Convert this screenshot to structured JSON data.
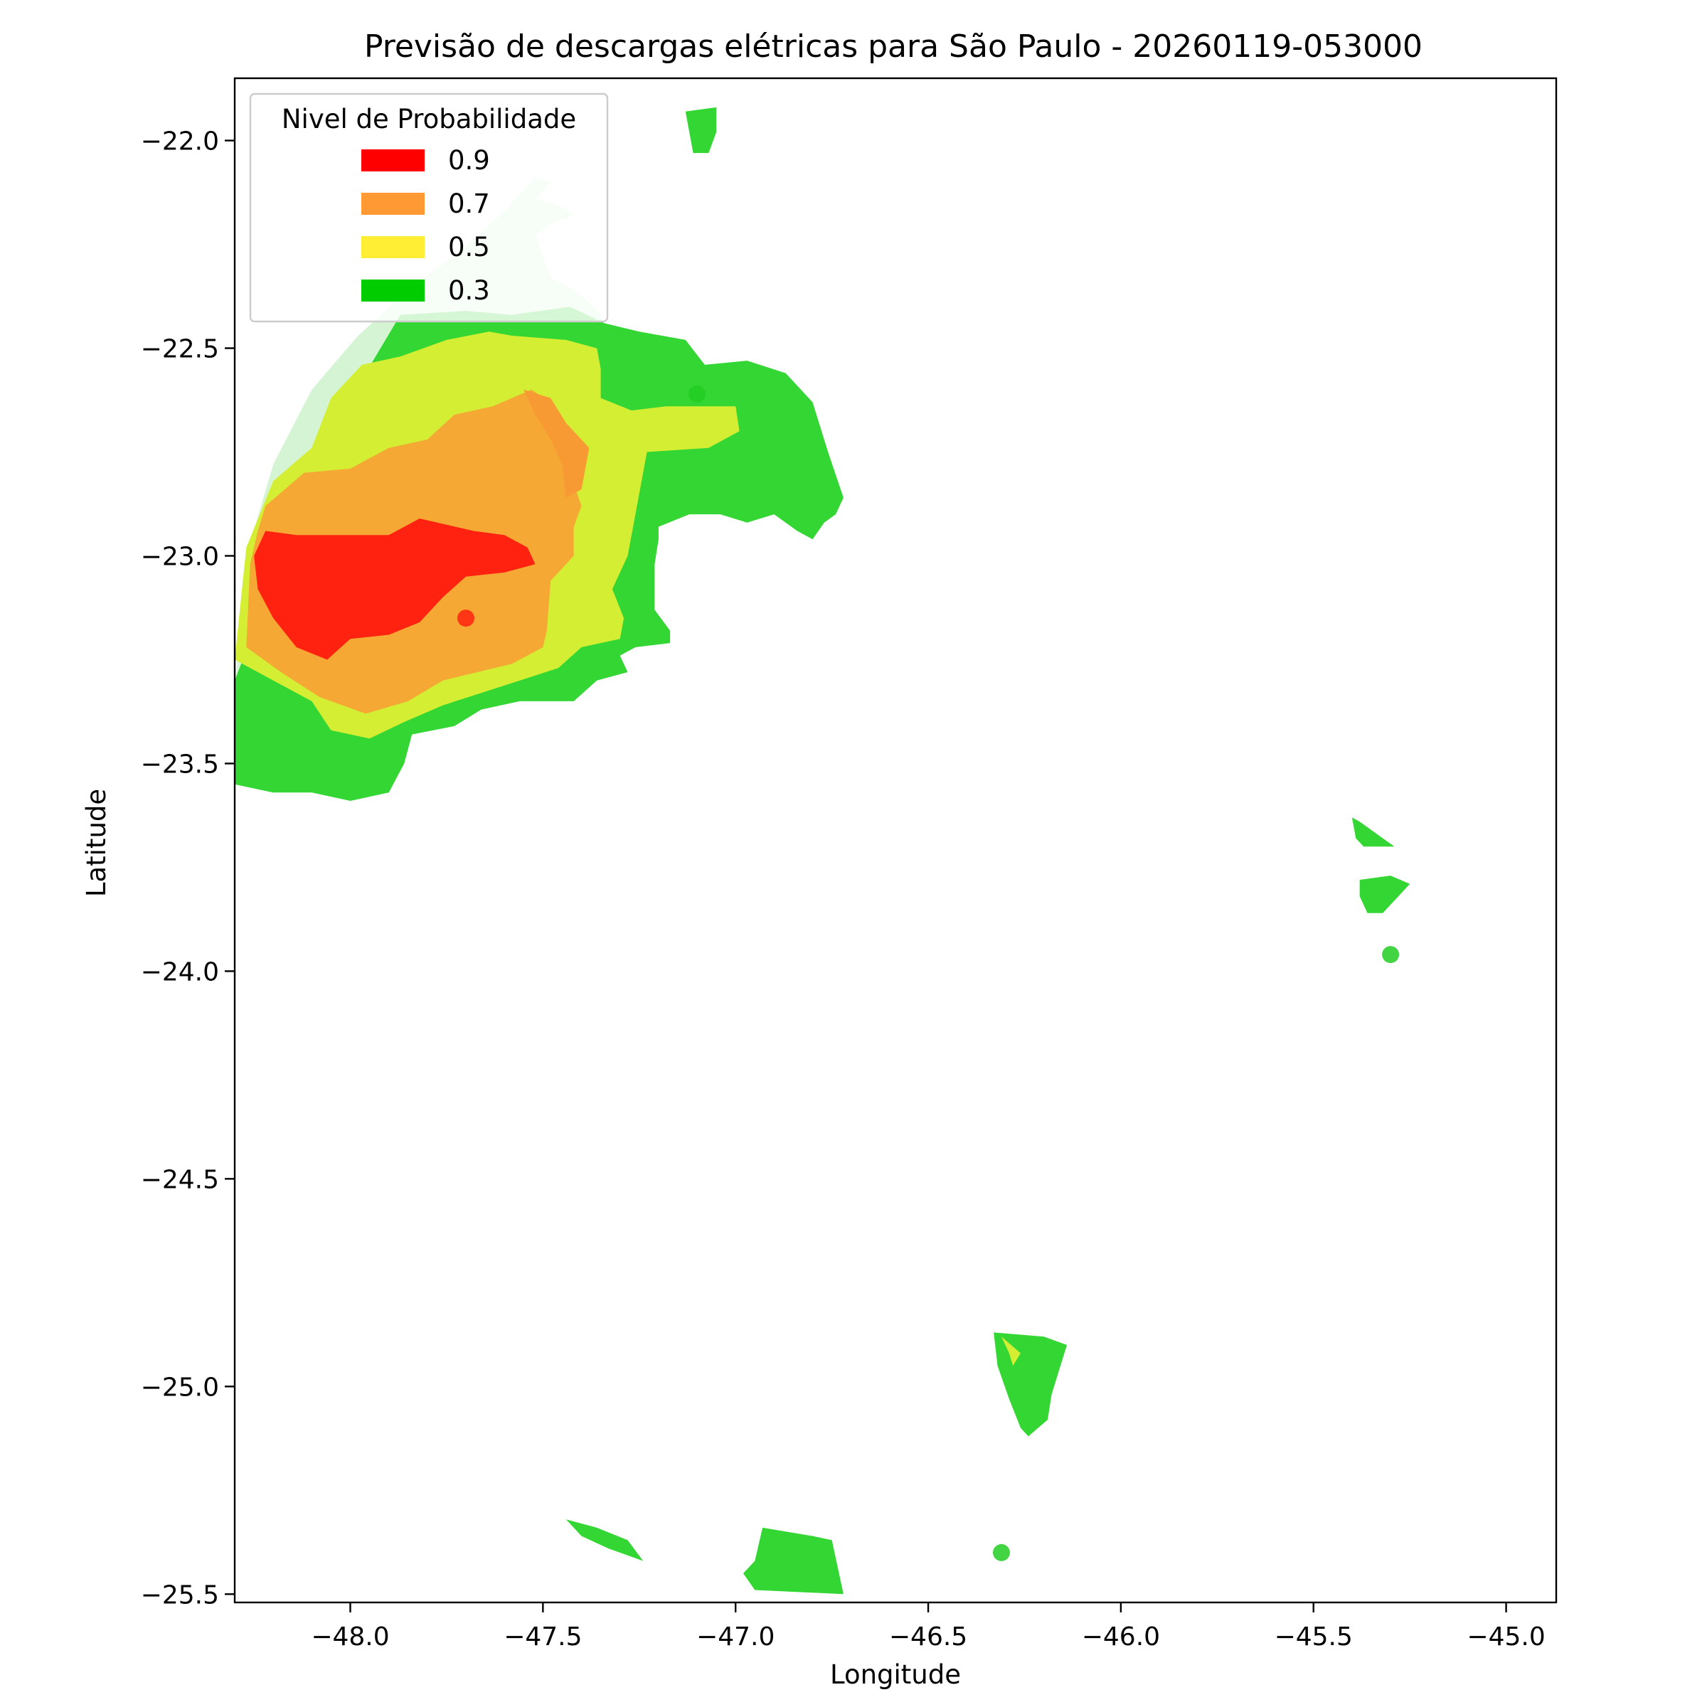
{
  "chart_data": {
    "type": "contour-map",
    "title": "Previsão de descargas elétricas para São Paulo - 20260119-053000",
    "xlabel": "Longitude",
    "ylabel": "Latitude",
    "xlim": [
      -48.3,
      -44.87
    ],
    "ylim": [
      -25.52,
      -21.85
    ],
    "x_ticks": [
      -48.0,
      -47.5,
      -47.0,
      -46.5,
      -46.0,
      -45.5,
      -45.0
    ],
    "y_ticks": [
      -22.0,
      -22.5,
      -23.0,
      -23.5,
      -24.0,
      -24.5,
      -25.0,
      -25.5
    ],
    "x_tick_labels": [
      "−48.0",
      "−47.5",
      "−47.0",
      "−46.5",
      "−46.0",
      "−45.5",
      "−45.0"
    ],
    "y_tick_labels": [
      "−22.0",
      "−22.5",
      "−23.0",
      "−23.5",
      "−24.0",
      "−24.5",
      "−25.0",
      "−25.5"
    ],
    "grid": false,
    "legend": {
      "title": "Nivel de Probabilidade",
      "placement": "top-left",
      "entries": [
        {
          "label": "0.9",
          "color": "#ff0000"
        },
        {
          "label": "0.7",
          "color": "#ff9933"
        },
        {
          "label": "0.5",
          "color": "#ffee33"
        },
        {
          "label": "0.3",
          "color": "#00cc00"
        }
      ]
    },
    "fill_colors": {
      "0.1": "#d4f4d4",
      "0.3": "#33d633",
      "0.5": "#d4ee33",
      "0.7": "#f5a833",
      "0.8": "#f89a33",
      "0.9": "#ff2211"
    },
    "regions": [
      {
        "level": "0.1",
        "points": [
          [
            -48.3,
            -23.32
          ],
          [
            -48.27,
            -23.0
          ],
          [
            -48.2,
            -22.78
          ],
          [
            -48.1,
            -22.6
          ],
          [
            -47.98,
            -22.47
          ],
          [
            -47.85,
            -22.36
          ],
          [
            -47.72,
            -22.27
          ],
          [
            -47.6,
            -22.17
          ],
          [
            -47.52,
            -22.09
          ],
          [
            -47.48,
            -22.1
          ],
          [
            -47.52,
            -22.14
          ],
          [
            -47.45,
            -22.16
          ],
          [
            -47.42,
            -22.18
          ],
          [
            -47.48,
            -22.2
          ],
          [
            -47.52,
            -22.23
          ],
          [
            -47.5,
            -22.28
          ],
          [
            -47.48,
            -22.33
          ],
          [
            -47.42,
            -22.36
          ],
          [
            -47.38,
            -22.39
          ],
          [
            -47.35,
            -22.42
          ],
          [
            -47.33,
            -22.48
          ],
          [
            -47.6,
            -22.6
          ],
          [
            -48.3,
            -23.3
          ]
        ]
      },
      {
        "level": "0.3",
        "points": [
          [
            -47.87,
            -22.42
          ],
          [
            -47.7,
            -22.41
          ],
          [
            -47.58,
            -22.42
          ],
          [
            -47.43,
            -22.4
          ],
          [
            -47.34,
            -22.44
          ],
          [
            -47.25,
            -22.46
          ],
          [
            -47.13,
            -22.48
          ],
          [
            -47.08,
            -22.54
          ],
          [
            -46.97,
            -22.53
          ],
          [
            -46.87,
            -22.56
          ],
          [
            -46.8,
            -22.63
          ],
          [
            -46.76,
            -22.75
          ],
          [
            -46.72,
            -22.86
          ],
          [
            -46.74,
            -22.9
          ],
          [
            -46.77,
            -22.92
          ],
          [
            -46.8,
            -22.96
          ],
          [
            -46.84,
            -22.94
          ],
          [
            -46.9,
            -22.9
          ],
          [
            -46.97,
            -22.92
          ],
          [
            -47.04,
            -22.9
          ],
          [
            -47.12,
            -22.9
          ],
          [
            -47.2,
            -22.93
          ],
          [
            -47.2,
            -22.96
          ],
          [
            -47.21,
            -23.02
          ],
          [
            -47.21,
            -23.13
          ],
          [
            -47.17,
            -23.18
          ],
          [
            -47.17,
            -23.21
          ],
          [
            -47.26,
            -23.22
          ],
          [
            -47.3,
            -23.24
          ],
          [
            -47.28,
            -23.28
          ],
          [
            -47.36,
            -23.3
          ],
          [
            -47.42,
            -23.35
          ],
          [
            -47.56,
            -23.35
          ],
          [
            -47.66,
            -23.37
          ],
          [
            -47.73,
            -23.41
          ],
          [
            -47.84,
            -23.43
          ],
          [
            -47.86,
            -23.5
          ],
          [
            -47.9,
            -23.57
          ],
          [
            -48.0,
            -23.59
          ],
          [
            -48.1,
            -23.57
          ],
          [
            -48.2,
            -23.57
          ],
          [
            -48.3,
            -23.55
          ],
          [
            -48.3,
            -23.3
          ],
          [
            -48.05,
            -22.7
          ]
        ]
      },
      {
        "level": "0.5",
        "points": [
          [
            -48.1,
            -22.74
          ],
          [
            -48.05,
            -22.62
          ],
          [
            -47.97,
            -22.54
          ],
          [
            -47.87,
            -22.52
          ],
          [
            -47.75,
            -22.48
          ],
          [
            -47.64,
            -22.46
          ],
          [
            -47.58,
            -22.47
          ],
          [
            -47.44,
            -22.48
          ],
          [
            -47.36,
            -22.5
          ],
          [
            -47.35,
            -22.55
          ],
          [
            -47.35,
            -22.62
          ],
          [
            -47.27,
            -22.65
          ],
          [
            -47.18,
            -22.64
          ],
          [
            -47.0,
            -22.64
          ],
          [
            -46.99,
            -22.7
          ],
          [
            -47.07,
            -22.74
          ],
          [
            -47.23,
            -22.75
          ],
          [
            -47.24,
            -22.8
          ],
          [
            -47.26,
            -22.9
          ],
          [
            -47.28,
            -23.0
          ],
          [
            -47.32,
            -23.08
          ],
          [
            -47.29,
            -23.15
          ],
          [
            -47.3,
            -23.2
          ],
          [
            -47.4,
            -23.22
          ],
          [
            -47.46,
            -23.27
          ],
          [
            -47.56,
            -23.3
          ],
          [
            -47.66,
            -23.33
          ],
          [
            -47.76,
            -23.36
          ],
          [
            -47.86,
            -23.4
          ],
          [
            -47.95,
            -23.44
          ],
          [
            -48.05,
            -23.42
          ],
          [
            -48.1,
            -23.35
          ],
          [
            -48.2,
            -23.3
          ],
          [
            -48.3,
            -23.25
          ],
          [
            -48.27,
            -22.98
          ],
          [
            -48.2,
            -22.82
          ]
        ]
      },
      {
        "level": "0.7",
        "points": [
          [
            -48.22,
            -22.88
          ],
          [
            -48.12,
            -22.8
          ],
          [
            -48.0,
            -22.79
          ],
          [
            -47.9,
            -22.74
          ],
          [
            -47.8,
            -22.72
          ],
          [
            -47.73,
            -22.66
          ],
          [
            -47.63,
            -22.64
          ],
          [
            -47.53,
            -22.6
          ],
          [
            -47.48,
            -22.63
          ],
          [
            -47.48,
            -22.66
          ],
          [
            -47.43,
            -22.72
          ],
          [
            -47.43,
            -22.8
          ],
          [
            -47.4,
            -22.88
          ],
          [
            -47.42,
            -22.93
          ],
          [
            -47.42,
            -23.0
          ],
          [
            -47.48,
            -23.06
          ],
          [
            -47.49,
            -23.18
          ],
          [
            -47.5,
            -23.22
          ],
          [
            -47.58,
            -23.26
          ],
          [
            -47.67,
            -23.28
          ],
          [
            -47.76,
            -23.3
          ],
          [
            -47.85,
            -23.35
          ],
          [
            -47.96,
            -23.38
          ],
          [
            -48.08,
            -23.34
          ],
          [
            -48.18,
            -23.28
          ],
          [
            -48.27,
            -23.22
          ],
          [
            -48.26,
            -23.02
          ],
          [
            -48.24,
            -22.94
          ]
        ]
      },
      {
        "level": "0.8",
        "points": [
          [
            -47.55,
            -22.6
          ],
          [
            -47.48,
            -22.62
          ],
          [
            -47.44,
            -22.68
          ],
          [
            -47.38,
            -22.74
          ],
          [
            -47.4,
            -22.84
          ],
          [
            -47.44,
            -22.86
          ],
          [
            -47.45,
            -22.78
          ],
          [
            -47.48,
            -22.72
          ],
          [
            -47.52,
            -22.66
          ]
        ]
      },
      {
        "level": "0.9",
        "points": [
          [
            -48.25,
            -23.0
          ],
          [
            -48.22,
            -22.94
          ],
          [
            -48.14,
            -22.95
          ],
          [
            -48.0,
            -22.95
          ],
          [
            -47.9,
            -22.95
          ],
          [
            -47.82,
            -22.91
          ],
          [
            -47.68,
            -22.94
          ],
          [
            -47.6,
            -22.95
          ],
          [
            -47.54,
            -22.98
          ],
          [
            -47.52,
            -23.02
          ],
          [
            -47.6,
            -23.04
          ],
          [
            -47.7,
            -23.05
          ],
          [
            -47.76,
            -23.1
          ],
          [
            -47.82,
            -23.16
          ],
          [
            -47.9,
            -23.19
          ],
          [
            -48.0,
            -23.2
          ],
          [
            -48.06,
            -23.25
          ],
          [
            -48.14,
            -23.22
          ],
          [
            -48.2,
            -23.15
          ],
          [
            -48.24,
            -23.08
          ]
        ]
      },
      {
        "level": "0.3",
        "points": [
          [
            -47.13,
            -21.93
          ],
          [
            -47.05,
            -21.92
          ],
          [
            -47.05,
            -21.98
          ],
          [
            -47.07,
            -22.03
          ],
          [
            -47.11,
            -22.03
          ]
        ]
      },
      {
        "level": "0.3",
        "points": [
          [
            -45.4,
            -23.63
          ],
          [
            -45.38,
            -23.64
          ],
          [
            -45.32,
            -23.68
          ],
          [
            -45.29,
            -23.7
          ],
          [
            -45.37,
            -23.7
          ],
          [
            -45.39,
            -23.68
          ]
        ]
      },
      {
        "level": "0.3",
        "points": [
          [
            -45.38,
            -23.78
          ],
          [
            -45.3,
            -23.77
          ],
          [
            -45.25,
            -23.79
          ],
          [
            -45.29,
            -23.83
          ],
          [
            -45.32,
            -23.86
          ],
          [
            -45.36,
            -23.86
          ],
          [
            -45.38,
            -23.82
          ]
        ]
      },
      {
        "level": "0.3",
        "points": [
          [
            -46.33,
            -24.87
          ],
          [
            -46.2,
            -24.88
          ],
          [
            -46.14,
            -24.9
          ],
          [
            -46.16,
            -24.96
          ],
          [
            -46.18,
            -25.02
          ],
          [
            -46.19,
            -25.08
          ],
          [
            -46.24,
            -25.12
          ],
          [
            -46.26,
            -25.1
          ],
          [
            -46.29,
            -25.03
          ],
          [
            -46.32,
            -24.95
          ]
        ]
      },
      {
        "level": "0.5",
        "points": [
          [
            -46.31,
            -24.88
          ],
          [
            -46.26,
            -24.92
          ],
          [
            -46.28,
            -24.95
          ],
          [
            -46.29,
            -24.92
          ]
        ]
      },
      {
        "level": "0.3",
        "points": [
          [
            -47.44,
            -25.32
          ],
          [
            -47.36,
            -25.34
          ],
          [
            -47.28,
            -25.37
          ],
          [
            -47.24,
            -25.42
          ],
          [
            -47.33,
            -25.39
          ],
          [
            -47.4,
            -25.36
          ]
        ]
      },
      {
        "level": "0.3",
        "points": [
          [
            -46.93,
            -25.34
          ],
          [
            -46.8,
            -25.36
          ],
          [
            -46.75,
            -25.37
          ],
          [
            -46.72,
            -25.5
          ],
          [
            -46.95,
            -25.49
          ],
          [
            -46.98,
            -25.45
          ],
          [
            -46.95,
            -25.42
          ]
        ]
      }
    ],
    "points": [
      {
        "lon": -47.7,
        "lat": -23.15,
        "color": "#ff2211"
      },
      {
        "lon": -47.1,
        "lat": -22.61,
        "color": "#22cc22"
      },
      {
        "lon": -45.3,
        "lat": -23.96,
        "color": "#22cc22"
      },
      {
        "lon": -46.31,
        "lat": -25.4,
        "color": "#22cc22"
      }
    ]
  }
}
